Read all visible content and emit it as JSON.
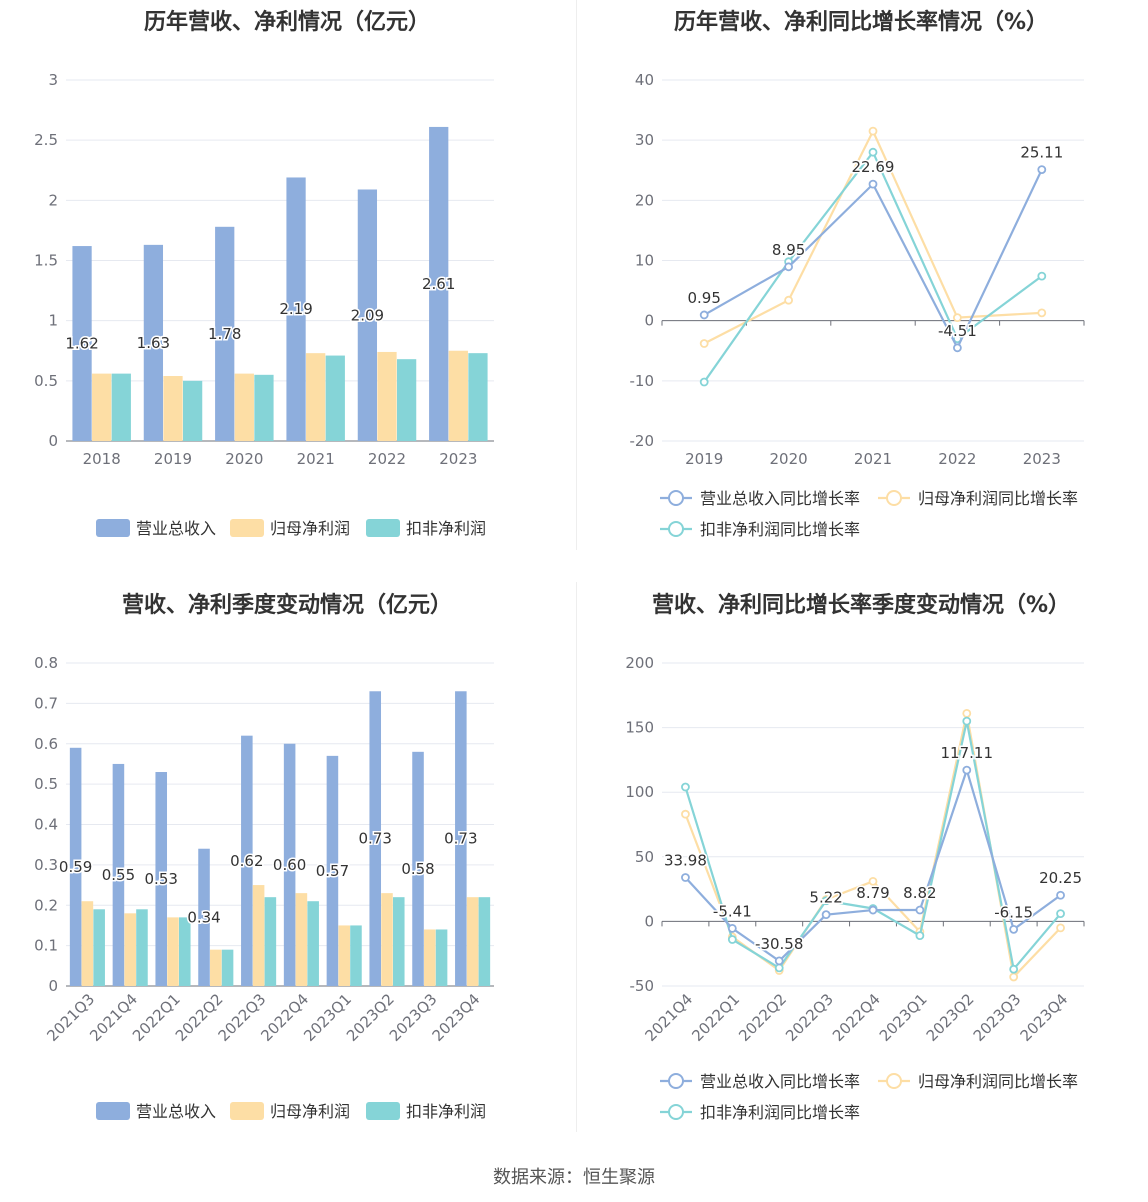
{
  "source": "数据来源：恒生聚源",
  "colors": {
    "revenue": "#8eaedd",
    "netprofit": "#fddea5",
    "deducted": "#85d4d7",
    "grid": "#e6e9f0",
    "axis": "#6e7079"
  },
  "chart_data": [
    {
      "id": "annual_bar",
      "type": "bar",
      "title": "历年营收、净利情况（亿元）",
      "categories": [
        "2018",
        "2019",
        "2020",
        "2021",
        "2022",
        "2023"
      ],
      "ylim": [
        0,
        3
      ],
      "yticks": [
        0,
        0.5,
        1,
        1.5,
        2,
        2.5,
        3
      ],
      "ytick_labels": [
        "0",
        "0.5",
        "1",
        "1.5",
        "2",
        "2.5",
        "3"
      ],
      "labeled_series": 0,
      "label_decimals": 2,
      "series": [
        {
          "name": "营业总收入",
          "color": "#8eaedd",
          "values": [
            1.62,
            1.63,
            1.78,
            2.19,
            2.09,
            2.61
          ]
        },
        {
          "name": "归母净利润",
          "color": "#fddea5",
          "values": [
            0.56,
            0.54,
            0.56,
            0.73,
            0.74,
            0.75
          ]
        },
        {
          "name": "扣非净利润",
          "color": "#85d4d7",
          "values": [
            0.56,
            0.5,
            0.55,
            0.71,
            0.68,
            0.73
          ]
        }
      ]
    },
    {
      "id": "annual_line",
      "type": "line",
      "title": "历年营收、净利同比增长率情况（%）",
      "categories": [
        "2019",
        "2020",
        "2021",
        "2022",
        "2023"
      ],
      "ylim": [
        -20,
        40
      ],
      "yticks": [
        -20,
        -10,
        0,
        10,
        20,
        30,
        40
      ],
      "ytick_labels": [
        "-20",
        "-10",
        "0",
        "10",
        "20",
        "30",
        "40"
      ],
      "labeled_series": 0,
      "series": [
        {
          "name": "营业总收入同比增长率",
          "color": "#8eaedd",
          "values": [
            0.95,
            8.95,
            22.69,
            -4.51,
            25.11
          ],
          "labels": [
            "0.95",
            "8.95",
            "22.69",
            "-4.51",
            "25.11"
          ]
        },
        {
          "name": "归母净利润同比增长率",
          "color": "#fddea5",
          "values": [
            -3.8,
            3.4,
            31.5,
            0.5,
            1.3
          ]
        },
        {
          "name": "扣非净利润同比增长率",
          "color": "#85d4d7",
          "values": [
            -10.2,
            9.8,
            28.0,
            -3.0,
            7.4
          ]
        }
      ]
    },
    {
      "id": "quarter_bar",
      "type": "bar",
      "title": "营收、净利季度变动情况（亿元）",
      "categories": [
        "2021Q3",
        "2021Q4",
        "2022Q1",
        "2022Q2",
        "2022Q3",
        "2022Q4",
        "2023Q1",
        "2023Q2",
        "2023Q3",
        "2023Q4"
      ],
      "ylim": [
        0,
        0.8
      ],
      "yticks": [
        0,
        0.1,
        0.2,
        0.3,
        0.4,
        0.5,
        0.6,
        0.7,
        0.8
      ],
      "ytick_labels": [
        "0",
        "0.1",
        "0.2",
        "0.3",
        "0.4",
        "0.5",
        "0.6",
        "0.7",
        "0.8"
      ],
      "labeled_series": 0,
      "label_decimals": 2,
      "rotate_x": true,
      "series": [
        {
          "name": "营业总收入",
          "color": "#8eaedd",
          "values": [
            0.59,
            0.55,
            0.53,
            0.34,
            0.62,
            0.6,
            0.57,
            0.73,
            0.58,
            0.73
          ]
        },
        {
          "name": "归母净利润",
          "color": "#fddea5",
          "values": [
            0.21,
            0.18,
            0.17,
            0.09,
            0.25,
            0.23,
            0.15,
            0.23,
            0.14,
            0.22
          ]
        },
        {
          "name": "扣非净利润",
          "color": "#85d4d7",
          "values": [
            0.19,
            0.19,
            0.17,
            0.09,
            0.22,
            0.21,
            0.15,
            0.22,
            0.14,
            0.22
          ]
        }
      ]
    },
    {
      "id": "quarter_line",
      "type": "line",
      "title": "营收、净利同比增长率季度变动情况（%）",
      "categories": [
        "2021Q4",
        "2022Q1",
        "2022Q2",
        "2022Q3",
        "2022Q4",
        "2023Q1",
        "2023Q2",
        "2023Q3",
        "2023Q4"
      ],
      "ylim": [
        -50,
        200
      ],
      "yticks": [
        -50,
        0,
        50,
        100,
        150,
        200
      ],
      "ytick_labels": [
        "-50",
        "0",
        "50",
        "100",
        "150",
        "200"
      ],
      "labeled_series": 0,
      "rotate_x": true,
      "series": [
        {
          "name": "营业总收入同比增长率",
          "color": "#8eaedd",
          "values": [
            33.98,
            -5.41,
            -30.58,
            5.22,
            8.79,
            8.82,
            117.11,
            -6.15,
            20.25
          ],
          "labels": [
            "33.98",
            "-5.41",
            "-30.58",
            "5.22",
            "8.79",
            "8.82",
            "117.11",
            "-6.15",
            "20.25"
          ]
        },
        {
          "name": "归母净利润同比增长率",
          "color": "#fddea5",
          "values": [
            83,
            -12,
            -38,
            17,
            31,
            -8,
            161,
            -43,
            -5
          ]
        },
        {
          "name": "扣非净利润同比增长率",
          "color": "#85d4d7",
          "values": [
            104,
            -14,
            -36,
            16,
            10,
            -11,
            155,
            -37,
            6
          ]
        }
      ]
    }
  ]
}
